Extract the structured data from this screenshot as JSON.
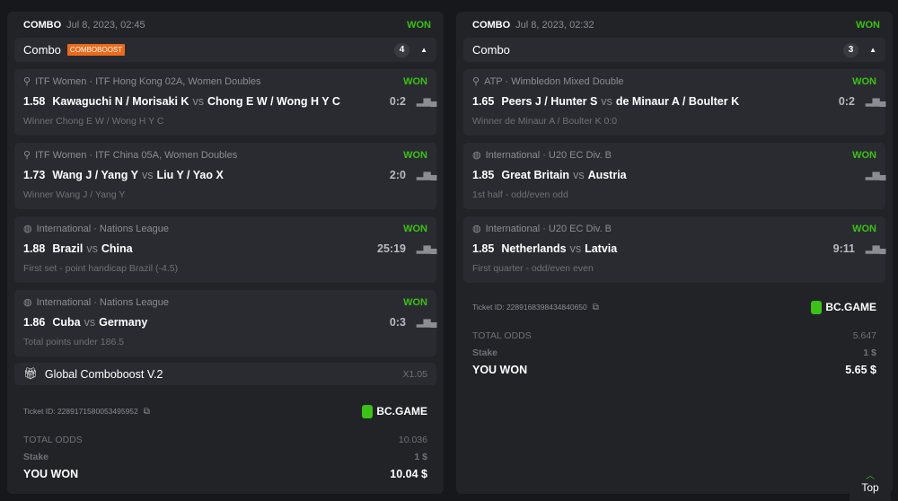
{
  "accent": "#3bc117",
  "boost_color": "#ec6a1a",
  "tickets": [
    {
      "type": "COMBO",
      "date": "Jul 8, 2023, 02:45",
      "status": "WON",
      "combo_label": "Combo",
      "badge": "COMBOBOOST",
      "count": "4",
      "legs": [
        {
          "icon": "tennis-icon",
          "league": "ITF Women · ITF Hong Kong 02A, Women Doubles",
          "status": "WON",
          "odds": "1.58",
          "home": "Kawaguchi N / Morisaki K",
          "vs": "vs",
          "away": "Chong E W / Wong H Y C",
          "score": "0:2",
          "market": "Winner Chong E W / Wong H Y C"
        },
        {
          "icon": "tennis-icon",
          "league": "ITF Women · ITF China 05A, Women Doubles",
          "status": "WON",
          "odds": "1.73",
          "home": "Wang J / Yang Y",
          "vs": "vs",
          "away": "Liu Y / Yao X",
          "score": "2:0",
          "market": "Winner Wang J / Yang Y"
        },
        {
          "icon": "volleyball-icon",
          "league": "International · Nations League",
          "status": "WON",
          "odds": "1.88",
          "home": "Brazil",
          "vs": "vs",
          "away": "China",
          "score": "25:19",
          "market": "First set - point handicap Brazil (-4.5)"
        },
        {
          "icon": "volleyball-icon",
          "league": "International · Nations League",
          "status": "WON",
          "odds": "1.86",
          "home": "Cuba",
          "vs": "vs",
          "away": "Germany",
          "score": "0:3",
          "market": "Total points under 186.5"
        }
      ],
      "boost": {
        "label": "Global Comboboost V.2",
        "value": "X1.05"
      },
      "ticket_id": "Ticket ID: 2289171580053495952",
      "brand": "BC.GAME",
      "total_odds_label": "TOTAL ODDS",
      "total_odds": "10.036",
      "stake_label": "Stake",
      "stake": "1 $",
      "won_label": "YOU WON",
      "won": "10.04 $"
    },
    {
      "type": "COMBO",
      "date": "Jul 8, 2023, 02:32",
      "status": "WON",
      "combo_label": "Combo",
      "count": "3",
      "legs": [
        {
          "icon": "tennis-icon",
          "league": "ATP · Wimbledon Mixed Double",
          "status": "WON",
          "odds": "1.65",
          "home": "Peers J / Hunter S",
          "vs": "vs",
          "away": "de Minaur A / Boulter K",
          "score": "0:2",
          "market": "Winner de Minaur A / Boulter K  0:0"
        },
        {
          "icon": "basketball-icon",
          "league": "International · U20 EC Div. B",
          "status": "WON",
          "odds": "1.85",
          "home": "Great Britain",
          "vs": "vs",
          "away": "Austria",
          "score": "",
          "market": "1st half - odd/even odd"
        },
        {
          "icon": "basketball-icon",
          "league": "International · U20 EC Div. B",
          "status": "WON",
          "odds": "1.85",
          "home": "Netherlands",
          "vs": "vs",
          "away": "Latvia",
          "score": "9:11",
          "market": "First quarter - odd/even even"
        }
      ],
      "ticket_id": "Ticket ID: 2289168398434840650",
      "brand": "BC.GAME",
      "total_odds_label": "TOTAL ODDS",
      "total_odds": "5.647",
      "stake_label": "Stake",
      "stake": "1 $",
      "won_label": "YOU WON",
      "won": "5.65 $"
    }
  ],
  "top_button": "Top"
}
